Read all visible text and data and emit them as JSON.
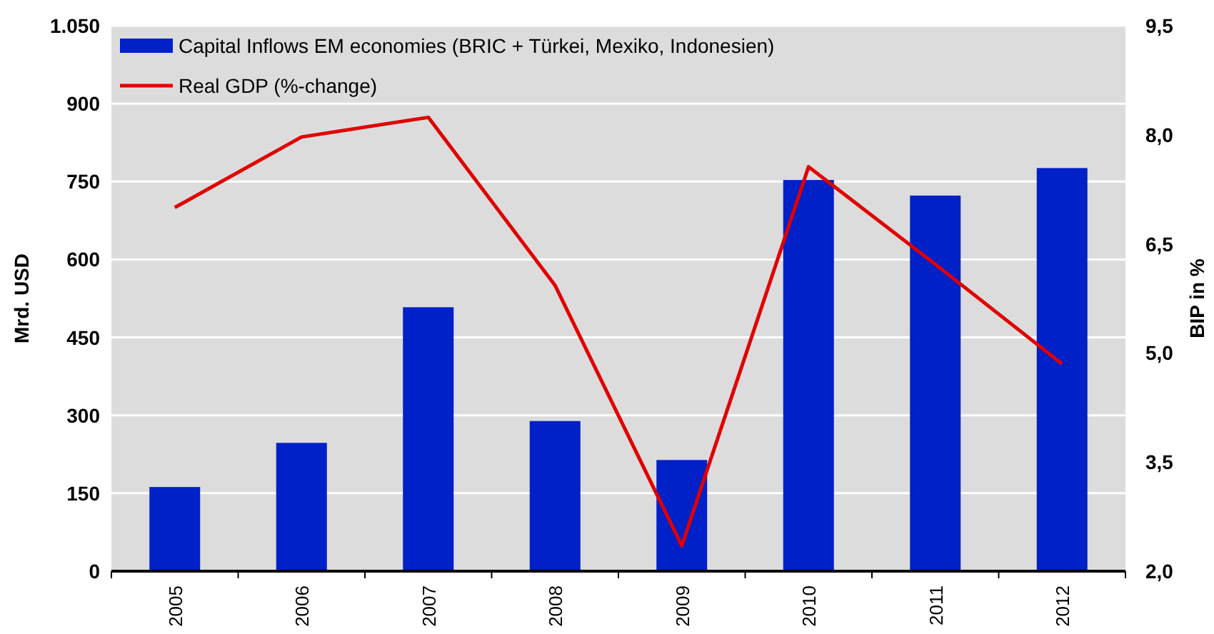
{
  "chart_data": {
    "type": "bar",
    "ylabel": "Mrd. USD",
    "y2label": "BIP in %",
    "categories": [
      "2005",
      "2006",
      "2007",
      "2008",
      "2009",
      "2010",
      "2011",
      "2012"
    ],
    "series": [
      {
        "name": "Capital Inflows EM economies (BRIC + Türkei, Mexiko, Indonesien)",
        "color": "#0020c8",
        "values": [
          162,
          247,
          508,
          289,
          214,
          753,
          723,
          776
        ]
      },
      {
        "name": "Real GDP (%-change)",
        "type": "line",
        "axis": "y2",
        "color": "#e00000",
        "values": [
          7.0,
          7.97,
          8.24,
          5.93,
          2.35,
          7.56,
          6.22,
          4.85
        ]
      }
    ],
    "ylim": [
      0,
      1050
    ],
    "yticks": [
      0,
      150,
      300,
      450,
      600,
      750,
      900,
      {
        "value": 1050,
        "label": "1.050"
      }
    ],
    "y2lim": [
      2,
      9.5
    ],
    "y2ticks": [
      {
        "value": 2,
        "label": "2,0"
      },
      {
        "value": 3.5,
        "label": "3,5"
      },
      {
        "value": 5,
        "label": "5,0"
      },
      {
        "value": 6.5,
        "label": "6,5"
      },
      {
        "value": 8,
        "label": "8,0"
      },
      {
        "value": 9.5,
        "label": "9,5"
      }
    ],
    "grid": "y",
    "legend": "top left",
    "line_style": "solid",
    "marker": "none"
  }
}
